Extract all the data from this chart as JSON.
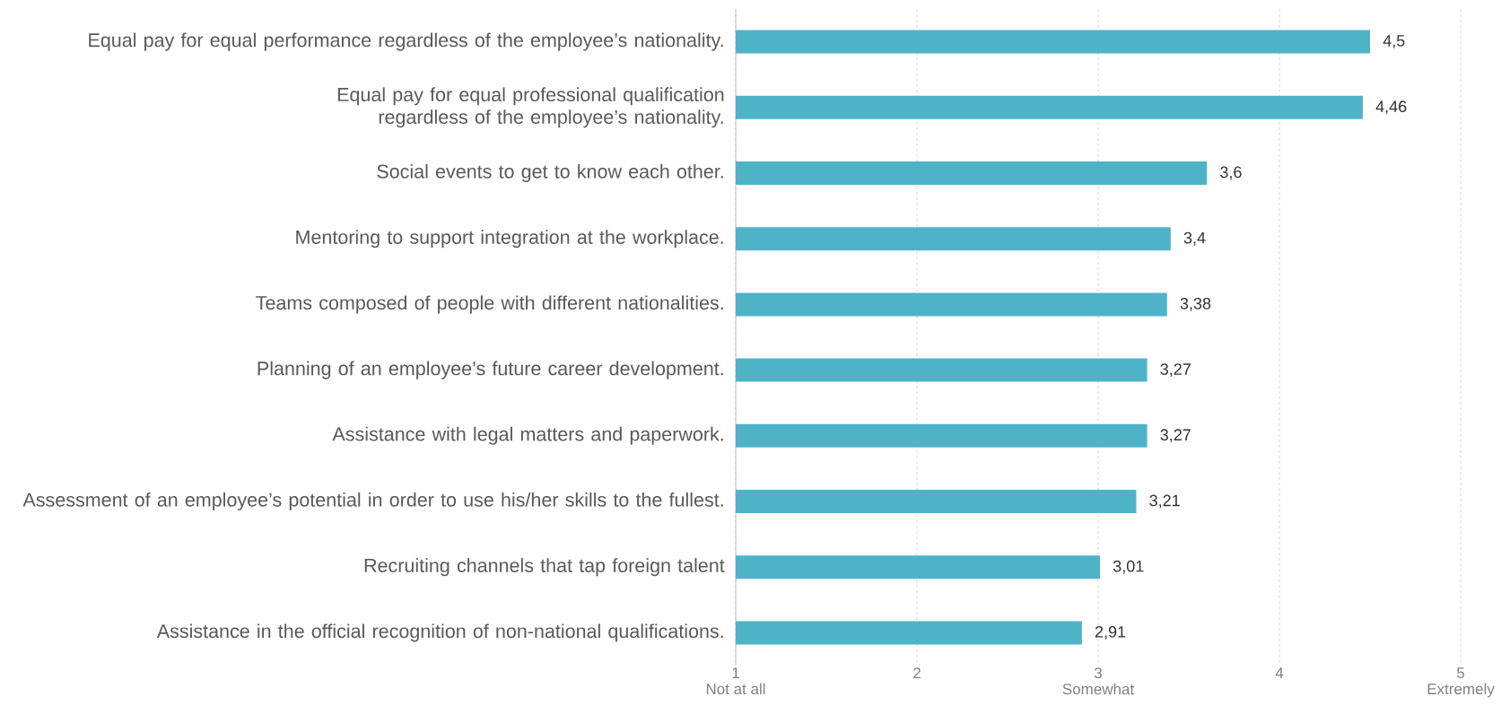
{
  "chart_data": {
    "type": "bar",
    "orientation": "horizontal",
    "categories": [
      "Equal pay for equal performance regardless of the employee’s nationality.",
      "Equal pay for equal professional qualification regardless of the employee’s nationality.",
      "Social events to get to know each other.",
      "Mentoring to support integration at the workplace.",
      "Teams composed of people with different nationalities.",
      "Planning of an employee’s future career development.",
      "Assistance with legal matters and paperwork.",
      "Assessment of an employee’s potential in order to use his/her skills to the fullest.",
      "Recruiting channels that tap foreign talent",
      "Assistance in the official recognition of non-national qualifications."
    ],
    "values": [
      4.5,
      4.46,
      3.6,
      3.4,
      3.38,
      3.27,
      3.27,
      3.21,
      3.01,
      2.91
    ],
    "value_labels": [
      "4,5",
      "4,46",
      "3,6",
      "3,4",
      "3,38",
      "3,27",
      "3,27",
      "3,21",
      "3,01",
      "2,91"
    ],
    "color": "#4fb3c8",
    "xlim": [
      1,
      5
    ],
    "xticks": [
      {
        "value": 1,
        "label": "1\nNot at all"
      },
      2,
      {
        "value": 3,
        "label": "3\nSomewhat"
      },
      4,
      {
        "value": 5,
        "label": "5\nExtremely"
      }
    ],
    "grid": "x"
  }
}
